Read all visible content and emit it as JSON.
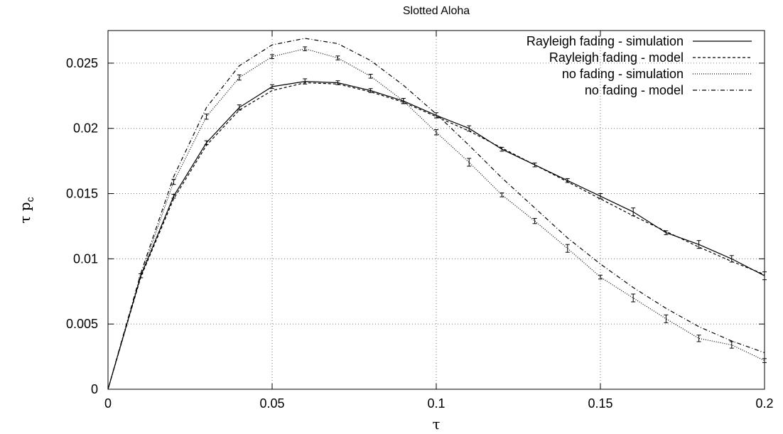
{
  "chart_data": {
    "type": "line",
    "title": "Slotted Aloha",
    "xlabel": "τ",
    "ylabel_main": "τ p",
    "ylabel_sub": "c",
    "xlim": [
      0,
      0.2
    ],
    "ylim": [
      0,
      0.0275
    ],
    "grid": true,
    "legend_position": "top-right",
    "xticks": [
      {
        "value": 0,
        "label": "0"
      },
      {
        "value": 0.05,
        "label": "0.05"
      },
      {
        "value": 0.1,
        "label": "0.1"
      },
      {
        "value": 0.15,
        "label": "0.15"
      },
      {
        "value": 0.2,
        "label": "0.2"
      }
    ],
    "yticks": [
      {
        "value": 0,
        "label": "0"
      },
      {
        "value": 0.005,
        "label": "0.005"
      },
      {
        "value": 0.01,
        "label": "0.01"
      },
      {
        "value": 0.015,
        "label": "0.015"
      },
      {
        "value": 0.02,
        "label": "0.02"
      },
      {
        "value": 0.025,
        "label": "0.025"
      }
    ],
    "series": [
      {
        "name": "Rayleigh fading - simulation",
        "style": "solid",
        "errorbars": true,
        "x": [
          0,
          0.01,
          0.02,
          0.03,
          0.04,
          0.05,
          0.06,
          0.07,
          0.08,
          0.09,
          0.1,
          0.11,
          0.12,
          0.13,
          0.14,
          0.15,
          0.16,
          0.17,
          0.18,
          0.19,
          0.2
        ],
        "y": [
          0,
          0.0087,
          0.0148,
          0.0189,
          0.0216,
          0.0232,
          0.0236,
          0.0235,
          0.0229,
          0.0221,
          0.021,
          0.02,
          0.0184,
          0.0172,
          0.016,
          0.0148,
          0.0136,
          0.012,
          0.0111,
          0.01,
          0.0087
        ],
        "err": [
          0,
          0.00015,
          0.00015,
          0.00015,
          0.0002,
          0.00015,
          0.0002,
          0.00015,
          0.00015,
          0.0002,
          0.0002,
          0.0002,
          0.00015,
          0.00015,
          0.00015,
          0.0002,
          0.0003,
          0.00015,
          0.0003,
          0.00025,
          0.0003
        ]
      },
      {
        "name": "Rayleigh fading - model",
        "style": "dashed",
        "errorbars": false,
        "x": [
          0,
          0.01,
          0.02,
          0.03,
          0.04,
          0.05,
          0.06,
          0.07,
          0.08,
          0.09,
          0.1,
          0.11,
          0.12,
          0.13,
          0.14,
          0.15,
          0.16,
          0.17,
          0.18,
          0.19,
          0.2
        ],
        "y": [
          0,
          0.0086,
          0.0146,
          0.0187,
          0.0214,
          0.0229,
          0.0235,
          0.0234,
          0.0228,
          0.022,
          0.0209,
          0.0198,
          0.0185,
          0.0172,
          0.0159,
          0.0146,
          0.0133,
          0.0121,
          0.0109,
          0.0098,
          0.0088
        ]
      },
      {
        "name": "no fading - simulation",
        "style": "dotted",
        "errorbars": true,
        "x": [
          0,
          0.01,
          0.02,
          0.03,
          0.04,
          0.05,
          0.06,
          0.07,
          0.08,
          0.09,
          0.1,
          0.11,
          0.12,
          0.13,
          0.14,
          0.15,
          0.16,
          0.17,
          0.18,
          0.19,
          0.2
        ],
        "y": [
          0,
          0.0087,
          0.0159,
          0.0209,
          0.0239,
          0.0255,
          0.0261,
          0.0254,
          0.024,
          0.0221,
          0.0197,
          0.0174,
          0.0149,
          0.0129,
          0.0108,
          0.0086,
          0.007,
          0.0054,
          0.0039,
          0.0034,
          0.0022
        ],
        "err": [
          0,
          0.00015,
          0.0002,
          0.0002,
          0.0002,
          0.00015,
          0.00015,
          0.00015,
          0.00015,
          0.0002,
          0.0002,
          0.0003,
          0.00015,
          0.0002,
          0.0003,
          0.00015,
          0.0003,
          0.0003,
          0.00025,
          0.00025,
          0.00015
        ]
      },
      {
        "name": "no fading - model",
        "style": "dashdot",
        "errorbars": false,
        "x": [
          0,
          0.01,
          0.02,
          0.03,
          0.04,
          0.05,
          0.06,
          0.07,
          0.08,
          0.09,
          0.1,
          0.11,
          0.12,
          0.13,
          0.14,
          0.15,
          0.16,
          0.17,
          0.18,
          0.19,
          0.2
        ],
        "y": [
          0,
          0.0089,
          0.0163,
          0.0216,
          0.0248,
          0.0264,
          0.0269,
          0.0265,
          0.0252,
          0.0233,
          0.0211,
          0.0187,
          0.0162,
          0.0139,
          0.0116,
          0.0096,
          0.0078,
          0.0062,
          0.0048,
          0.0037,
          0.0028
        ]
      }
    ]
  }
}
